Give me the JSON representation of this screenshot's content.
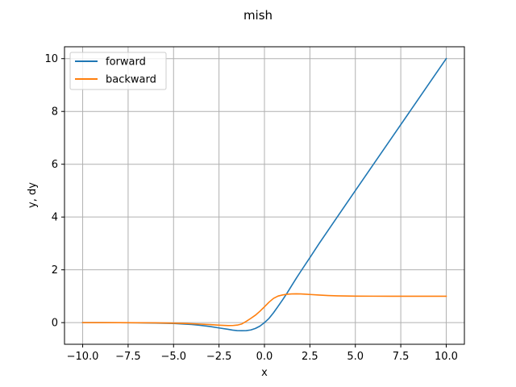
{
  "chart_data": {
    "type": "line",
    "title": "mish",
    "xlabel": "x",
    "ylabel": "y, dy",
    "xlim": [
      -11,
      11
    ],
    "ylim": [
      -0.82,
      10.45
    ],
    "xticks": [
      -10.0,
      -7.5,
      -5.0,
      -2.5,
      0.0,
      2.5,
      5.0,
      7.5,
      10.0
    ],
    "xtick_labels": [
      "−10.0",
      "−7.5",
      "−5.0",
      "−2.5",
      "0.0",
      "2.5",
      "5.0",
      "7.5",
      "10.0"
    ],
    "yticks": [
      0,
      2,
      4,
      6,
      8,
      10
    ],
    "ytick_labels": [
      "0",
      "2",
      "4",
      "6",
      "8",
      "10"
    ],
    "grid": true,
    "legend": "top-left",
    "x": [
      -10,
      -9,
      -8,
      -7,
      -6,
      -5,
      -4.5,
      -4,
      -3.5,
      -3,
      -2.5,
      -2,
      -1.75,
      -1.5,
      -1.25,
      -1,
      -0.75,
      -0.5,
      -0.25,
      0,
      0.25,
      0.5,
      0.75,
      1,
      1.25,
      1.5,
      1.75,
      2,
      2.5,
      3,
      3.5,
      4,
      5,
      6,
      7,
      8,
      9,
      10
    ],
    "series": [
      {
        "name": "forward",
        "color": "#1f77b4",
        "values": [
          -0.0005,
          -0.0011,
          -0.0027,
          -0.0064,
          -0.0149,
          -0.0336,
          -0.0495,
          -0.0719,
          -0.1033,
          -0.1456,
          -0.2016,
          -0.2525,
          -0.2845,
          -0.3034,
          -0.3066,
          -0.3034,
          -0.2785,
          -0.2207,
          -0.1327,
          0.0,
          0.1599,
          0.3752,
          0.6174,
          0.8651,
          1.1251,
          1.4034,
          1.6775,
          1.944,
          2.4628,
          2.9865,
          3.4908,
          3.9974,
          4.9996,
          5.9999,
          7.0,
          8.0,
          9.0,
          10.0
        ]
      },
      {
        "name": "backward",
        "color": "#ff7f0e",
        "values": [
          -0.0004,
          -0.0009,
          -0.002,
          -0.0044,
          -0.0092,
          -0.0203,
          -0.0294,
          -0.0415,
          -0.0569,
          -0.0752,
          -0.0953,
          -0.1106,
          -0.1103,
          -0.0938,
          -0.0526,
          0.0492,
          0.1606,
          0.2808,
          0.4304,
          0.6,
          0.7738,
          0.9189,
          1.0077,
          1.049,
          1.0768,
          1.088,
          1.0898,
          1.087,
          1.0663,
          1.0441,
          1.0263,
          1.0148,
          1.0041,
          1.001,
          1.0002,
          1.0,
          1.0,
          1.0
        ]
      }
    ]
  }
}
